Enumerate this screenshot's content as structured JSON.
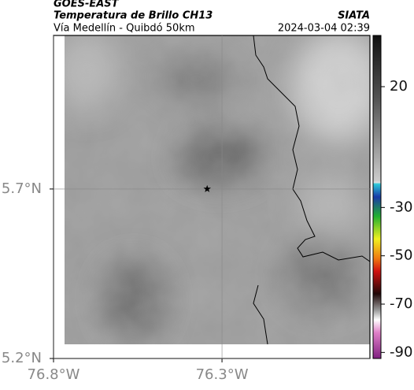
{
  "header": {
    "title": "GOES-EAST",
    "subtitle": "Temperatura de Brillo CH13",
    "source": "SIATA",
    "region": "Vía Medellín - Quibdó 50km",
    "timestamp": "2024-03-04 02:39"
  },
  "map": {
    "xlim": [
      -76.8,
      -75.861
    ],
    "ylim": [
      5.2,
      6.153
    ],
    "xticks": [
      {
        "value": -76.8,
        "label": "76.8°W"
      },
      {
        "value": -76.3,
        "label": "76.3°W"
      }
    ],
    "yticks": [
      {
        "value": 5.2,
        "label": "5.2°N"
      },
      {
        "value": 5.7,
        "label": "5.7°N"
      }
    ],
    "grid": true,
    "station": {
      "lon": -76.344,
      "lat": 5.7
    }
  },
  "colorbar": {
    "lim": [
      -92.5,
      41.2
    ],
    "ticks": [
      20,
      -30,
      -50,
      -70,
      -90
    ]
  }
}
